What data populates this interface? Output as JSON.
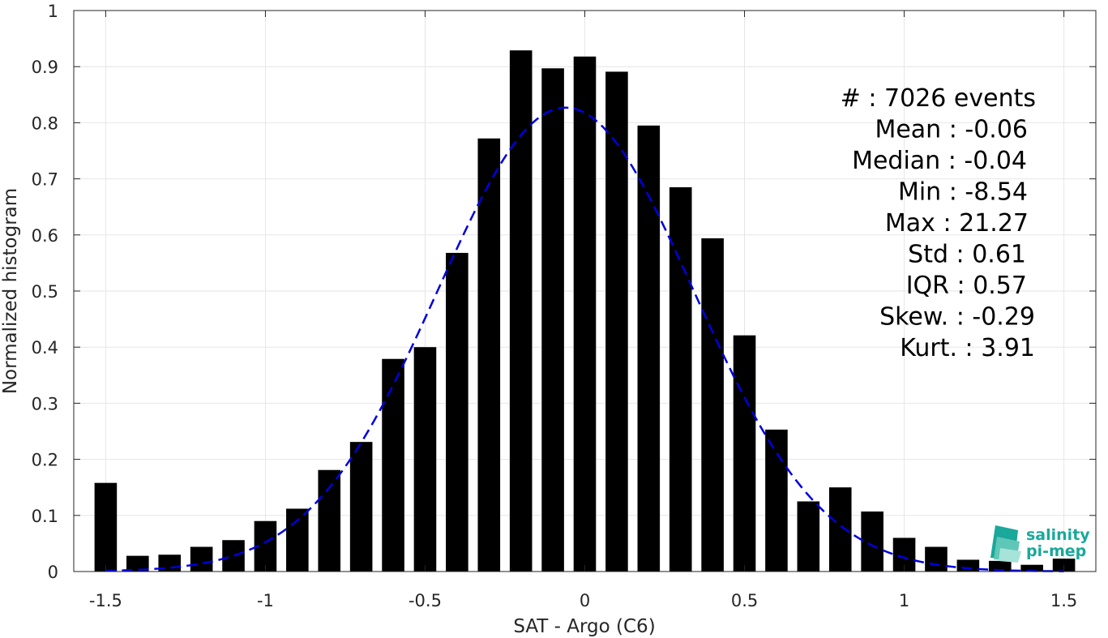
{
  "chart_data": {
    "type": "bar",
    "xlabel": "SAT - Argo (C6)",
    "ylabel": "Normalized histogram",
    "xlim": [
      -1.6,
      1.6
    ],
    "ylim": [
      0,
      1
    ],
    "grid": true,
    "xticks": [
      -1.5,
      -1,
      -0.5,
      0,
      0.5,
      1,
      1.5
    ],
    "xtick_labels": [
      "-1.5",
      "-1",
      "-0.5",
      "0",
      "0.5",
      "1",
      "1.5"
    ],
    "yticks": [
      0,
      0.1,
      0.2,
      0.3,
      0.4,
      0.5,
      0.6,
      0.7,
      0.8,
      0.9,
      1
    ],
    "ytick_labels": [
      "0",
      "0.1",
      "0.2",
      "0.3",
      "0.4",
      "0.5",
      "0.6",
      "0.7",
      "0.8",
      "0.9",
      "1"
    ],
    "bar_width": 0.07,
    "bar_color": "#000000",
    "bars": [
      {
        "x": -1.5,
        "y": 0.158
      },
      {
        "x": -1.4,
        "y": 0.028
      },
      {
        "x": -1.3,
        "y": 0.03
      },
      {
        "x": -1.2,
        "y": 0.044
      },
      {
        "x": -1.1,
        "y": 0.056
      },
      {
        "x": -1.0,
        "y": 0.09
      },
      {
        "x": -0.9,
        "y": 0.112
      },
      {
        "x": -0.8,
        "y": 0.181
      },
      {
        "x": -0.7,
        "y": 0.231
      },
      {
        "x": -0.6,
        "y": 0.379
      },
      {
        "x": -0.5,
        "y": 0.4
      },
      {
        "x": -0.4,
        "y": 0.568
      },
      {
        "x": -0.3,
        "y": 0.772
      },
      {
        "x": -0.2,
        "y": 0.929
      },
      {
        "x": -0.1,
        "y": 0.897
      },
      {
        "x": 0.0,
        "y": 0.918
      },
      {
        "x": 0.1,
        "y": 0.891
      },
      {
        "x": 0.2,
        "y": 0.795
      },
      {
        "x": 0.3,
        "y": 0.685
      },
      {
        "x": 0.4,
        "y": 0.594
      },
      {
        "x": 0.5,
        "y": 0.421
      },
      {
        "x": 0.6,
        "y": 0.253
      },
      {
        "x": 0.7,
        "y": 0.125
      },
      {
        "x": 0.8,
        "y": 0.15
      },
      {
        "x": 0.9,
        "y": 0.107
      },
      {
        "x": 1.0,
        "y": 0.06
      },
      {
        "x": 1.1,
        "y": 0.044
      },
      {
        "x": 1.2,
        "y": 0.021
      },
      {
        "x": 1.3,
        "y": 0.019
      },
      {
        "x": 1.4,
        "y": 0.012
      },
      {
        "x": 1.5,
        "y": 0.023
      }
    ],
    "fit_curve": {
      "style": "dashed",
      "color": "#0000e0",
      "mean": -0.06,
      "std": 0.4,
      "peak": 0.827,
      "x_range": [
        -1.5,
        1.5
      ]
    },
    "stats": [
      "#  : 7026 events",
      "Mean : -0.06",
      "Median : -0.04",
      "Min : -8.54",
      "Max : 21.27",
      "Std : 0.61",
      "IQR : 0.57",
      "Skew. : -0.29",
      "Kurt. : 3.91"
    ]
  },
  "logo": {
    "line1": "salinity",
    "line2": "pi-mep",
    "icon": "salinity-logo-icon",
    "color": "#1aa89a"
  }
}
